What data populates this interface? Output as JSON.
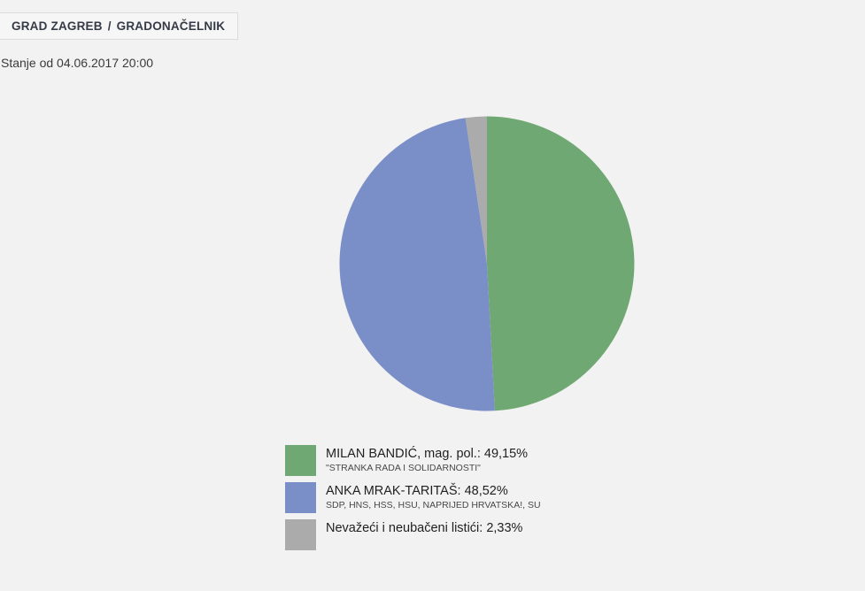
{
  "breadcrumb": {
    "items": [
      "GRAD ZAGREB",
      "GRADONAČELNIK"
    ],
    "separator": "/"
  },
  "status": {
    "text": "Stanje od 04.06.2017 20:00"
  },
  "chart_data": {
    "type": "pie",
    "title": "",
    "start_angle_deg": 0,
    "direction": "clockwise",
    "legend_position": "bottom-left",
    "slices": [
      {
        "label": "MILAN BANDIĆ, mag. pol.",
        "sublabel": "\"STRANKA RADA I SOLIDARNOSTI\"",
        "value": 49.15,
        "display": "49,15%",
        "color": "#70a873"
      },
      {
        "label": "ANKA MRAK-TARITAŠ",
        "sublabel": "SDP, HNS, HSS, HSU, NAPRIJED HRVATSKA!, SU",
        "value": 48.52,
        "display": "48,52%",
        "color": "#7a8ec8"
      },
      {
        "label": "Nevažeći i neubačeni listići",
        "sublabel": "",
        "value": 2.33,
        "display": "2,33%",
        "color": "#ababab"
      }
    ]
  },
  "legend": {
    "items": [
      {
        "title": "MILAN BANDIĆ, mag. pol.: 49,15%",
        "subtitle": "\"STRANKA RADA I SOLIDARNOSTI\"",
        "color": "#70a873"
      },
      {
        "title": "ANKA MRAK-TARITAŠ: 48,52%",
        "subtitle": "SDP, HNS, HSS, HSU, NAPRIJED HRVATSKA!, SU",
        "color": "#7a8ec8"
      },
      {
        "title": "Nevažeći i neubačeni listići: 2,33%",
        "subtitle": "",
        "color": "#ababab"
      }
    ]
  },
  "colors": {
    "page_background": "#f2f2f2",
    "box_background": "#f6f6f6",
    "box_border": "#dcdcdc",
    "breadcrumb_text": "#343b46"
  }
}
